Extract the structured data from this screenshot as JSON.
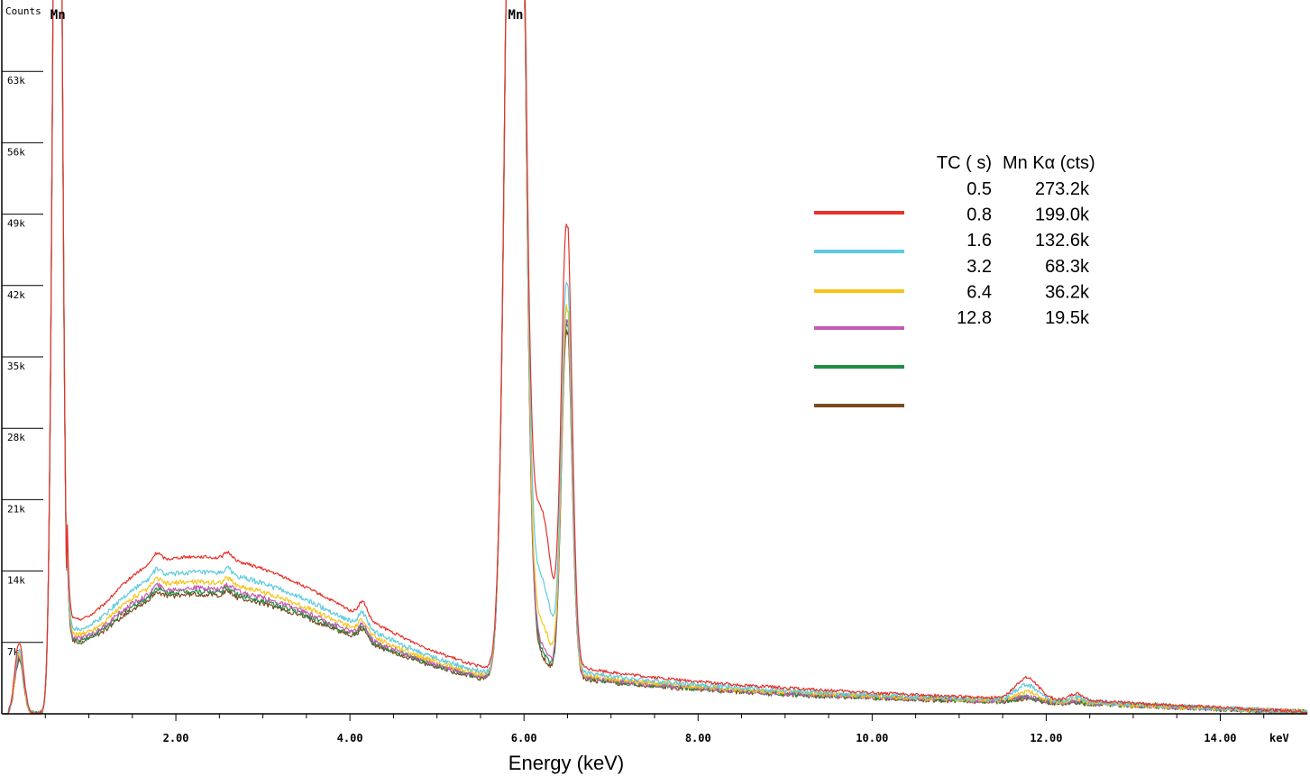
{
  "chart_data": {
    "type": "line",
    "xlabel": "Energy (keV)",
    "x_units": "keV",
    "ylabel": "Counts",
    "xlim": [
      0,
      15.0
    ],
    "ylim": [
      0,
      70000
    ],
    "x_ticks": [
      2,
      4,
      6,
      8,
      10,
      12,
      14
    ],
    "x_tick_labels": [
      "2.00",
      "4.00",
      "6.00",
      "8.00",
      "10.00",
      "12.00",
      "14.00"
    ],
    "y_ticks": [
      7000,
      14000,
      21000,
      28000,
      35000,
      42000,
      49000,
      56000,
      63000
    ],
    "y_tick_labels": [
      "7k",
      "14k",
      "21k",
      "28k",
      "35k",
      "42k",
      "49k",
      "56k",
      "63k"
    ],
    "annotations": [
      {
        "text": "Mn",
        "x": 0.64
      },
      {
        "text": "Mn",
        "x": 5.9
      }
    ],
    "legend": {
      "header_tc": "TC ( s)",
      "header_counts": "Mn Kα (cts)",
      "rows": [
        {
          "tc": "0.5",
          "counts": "273.2k",
          "color": "#e8302a"
        },
        {
          "tc": "0.8",
          "counts": "199.0k",
          "color": "#5ccbe0"
        },
        {
          "tc": "1.6",
          "counts": "132.6k",
          "color": "#f7c518"
        },
        {
          "tc": "3.2",
          "counts": "68.3k",
          "color": "#c35bb3"
        },
        {
          "tc": "6.4",
          "counts": "36.2k",
          "color": "#1f8c45"
        },
        {
          "tc": "12.8",
          "counts": "19.5k",
          "color": "#7a4a1e"
        }
      ]
    },
    "series": [
      {
        "color": "#e8302a",
        "bg_level": 1.0,
        "valley_kalpha_kbeta": 17200,
        "kbeta_peak": 45800,
        "x": [
          0,
          0.2,
          0.5,
          0.64,
          0.8,
          1.0,
          1.5,
          1.8,
          2.0,
          2.6,
          3.0,
          4.0,
          4.2,
          5.5,
          5.9,
          6.2,
          6.5,
          7.0,
          8.0,
          10.0,
          11.8,
          12.4,
          15.0
        ],
        "y": [
          0,
          7000,
          20000,
          70000,
          6000,
          6000,
          9000,
          10000,
          10000,
          11000,
          10000,
          7000,
          8000,
          5000,
          70000,
          17200,
          45800,
          6000,
          4000,
          2500,
          4700,
          2300,
          800
        ]
      },
      {
        "color": "#5ccbe0",
        "bg_level": 0.9,
        "valley_kalpha_kbeta": 10500,
        "kbeta_peak": 40600,
        "x": [
          0,
          0.2,
          0.5,
          0.64,
          0.8,
          1.0,
          1.5,
          1.8,
          2.0,
          2.6,
          3.0,
          4.0,
          4.2,
          5.5,
          5.9,
          6.2,
          6.5,
          7.0,
          8.0,
          10.0,
          11.8,
          12.4,
          15.0
        ],
        "y": [
          0,
          6000,
          18000,
          70000,
          5000,
          5000,
          8000,
          9000,
          9000,
          10000,
          9000,
          6000,
          7000,
          4500,
          70000,
          10500,
          40600,
          4800,
          3200,
          1900,
          3600,
          1900,
          700
        ]
      },
      {
        "color": "#f7c518",
        "bg_level": 0.84,
        "valley_kalpha_kbeta": 6000,
        "kbeta_peak": 38600,
        "x": [
          0,
          0.2,
          0.5,
          0.64,
          0.8,
          1.0,
          1.5,
          1.8,
          2.0,
          2.6,
          3.0,
          4.0,
          4.2,
          5.5,
          5.9,
          6.2,
          6.5,
          7.0,
          8.0,
          10.0,
          11.8,
          12.4,
          15.0
        ],
        "y": [
          0,
          5500,
          17000,
          70000,
          4500,
          4500,
          7500,
          8500,
          8500,
          9000,
          8500,
          5500,
          6500,
          4000,
          70000,
          6000,
          38600,
          3700,
          2600,
          1600,
          2600,
          1500,
          600
        ]
      },
      {
        "color": "#c35bb3",
        "bg_level": 0.8,
        "valley_kalpha_kbeta": 4000,
        "kbeta_peak": 37600,
        "x": [
          0,
          0.2,
          0.5,
          0.64,
          0.8,
          1.0,
          1.5,
          1.8,
          2.0,
          2.6,
          3.0,
          4.0,
          4.2,
          5.5,
          5.9,
          6.2,
          6.5,
          7.0,
          8.0,
          10.0,
          11.8,
          12.4,
          15.0
        ],
        "y": [
          0,
          5000,
          16000,
          70000,
          4000,
          4000,
          7000,
          8000,
          8000,
          8500,
          8000,
          5200,
          6200,
          3800,
          70000,
          4000,
          37600,
          3200,
          2300,
          1400,
          2000,
          1300,
          500
        ]
      },
      {
        "color": "#1f8c45",
        "bg_level": 0.78,
        "valley_kalpha_kbeta": 3400,
        "kbeta_peak": 37200,
        "x": [
          0,
          0.2,
          0.5,
          0.64,
          0.8,
          1.0,
          1.5,
          1.8,
          2.0,
          2.6,
          3.0,
          4.0,
          4.2,
          5.5,
          5.9,
          6.2,
          6.5,
          7.0,
          8.0,
          10.0,
          11.8,
          12.4,
          15.0
        ],
        "y": [
          0,
          4800,
          15500,
          70000,
          3800,
          3800,
          6800,
          7800,
          7800,
          8200,
          7800,
          5000,
          6000,
          3700,
          70000,
          3400,
          37200,
          3000,
          2100,
          1300,
          1800,
          1200,
          500
        ]
      },
      {
        "color": "#7a4a1e",
        "bg_level": 0.76,
        "valley_kalpha_kbeta": 3000,
        "kbeta_peak": 36800,
        "x": [
          0,
          0.2,
          0.5,
          0.64,
          0.8,
          1.0,
          1.5,
          1.8,
          2.0,
          2.6,
          3.0,
          4.0,
          4.2,
          5.5,
          5.9,
          6.2,
          6.5,
          7.0,
          8.0,
          10.0,
          11.8,
          12.4,
          15.0
        ],
        "y": [
          0,
          4600,
          15000,
          70000,
          3600,
          3600,
          6600,
          7600,
          7600,
          8000,
          7600,
          4800,
          5800,
          3600,
          70000,
          3000,
          36800,
          2900,
          2000,
          1200,
          1600,
          1100,
          400
        ]
      }
    ]
  }
}
